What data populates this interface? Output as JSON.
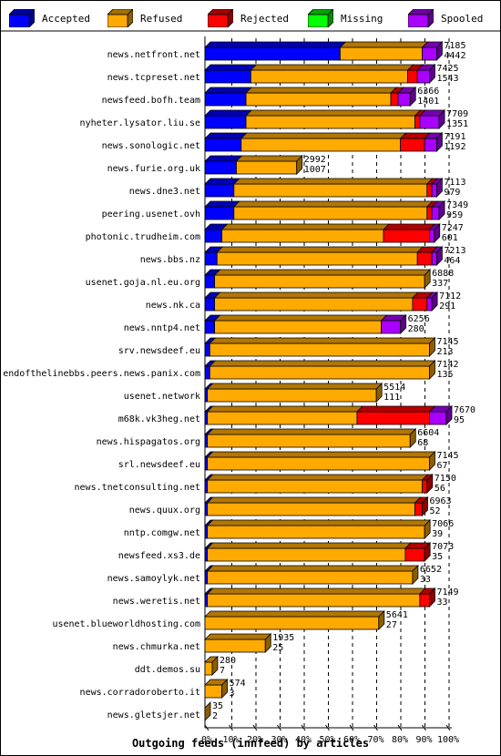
{
  "chart_data": {
    "type": "bar",
    "orientation": "horizontal",
    "stacked": true,
    "title": "Outgoing feeds (innfeed) by articles",
    "series": [
      {
        "name": "Accepted",
        "color": "#0000ff"
      },
      {
        "name": "Refused",
        "color": "#ffaa00"
      },
      {
        "name": "Rejected",
        "color": "#ff0000"
      },
      {
        "name": "Missing",
        "color": "#00ff00"
      },
      {
        "name": "Spooled",
        "color": "#aa00ff"
      }
    ],
    "x_ticks": [
      "0%",
      "10%",
      "20%",
      "30%",
      "40%",
      "50%",
      "60%",
      "70%",
      "80%",
      "90%",
      "100%"
    ],
    "xlim": [
      0,
      100
    ],
    "grid": true,
    "legend_position": "top",
    "rows": [
      {
        "name": "news.netfront.net",
        "total": "7185",
        "accepted": "4442",
        "pct": [
          56,
          34,
          0,
          0,
          6
        ]
      },
      {
        "name": "news.tcpreset.net",
        "total": "7425",
        "accepted": "1543",
        "pct": [
          19,
          65,
          4,
          0,
          5
        ]
      },
      {
        "name": "newsfeed.bofh.team",
        "total": "6366",
        "accepted": "1401",
        "pct": [
          17,
          60,
          3,
          0,
          5
        ]
      },
      {
        "name": "nyheter.lysator.liu.se",
        "total": "7709",
        "accepted": "1351",
        "pct": [
          17,
          70,
          2,
          0,
          8
        ]
      },
      {
        "name": "news.sonologic.net",
        "total": "7191",
        "accepted": "1192",
        "pct": [
          15,
          66,
          10,
          0,
          5
        ]
      },
      {
        "name": "news.furie.org.uk",
        "total": "2992",
        "accepted": "1007",
        "pct": [
          13,
          25,
          0,
          0,
          0
        ]
      },
      {
        "name": "news.dne3.net",
        "total": "7113",
        "accepted": "979",
        "pct": [
          12,
          80,
          2,
          0,
          2
        ]
      },
      {
        "name": "peering.usenet.ovh",
        "total": "7349",
        "accepted": "959",
        "pct": [
          12,
          80,
          2,
          0,
          3
        ]
      },
      {
        "name": "photonic.trudheim.com",
        "total": "7247",
        "accepted": "601",
        "pct": [
          7,
          67,
          19,
          0,
          2
        ]
      },
      {
        "name": "news.bbs.nz",
        "total": "7213",
        "accepted": "464",
        "pct": [
          5,
          83,
          6,
          0,
          2
        ]
      },
      {
        "name": "usenet.goja.nl.eu.org",
        "total": "6888",
        "accepted": "337",
        "pct": [
          4,
          87,
          0,
          0,
          0
        ]
      },
      {
        "name": "news.nk.ca",
        "total": "7112",
        "accepted": "291",
        "pct": [
          4,
          82,
          6,
          0,
          2
        ]
      },
      {
        "name": "news.nntp4.net",
        "total": "6256",
        "accepted": "280",
        "pct": [
          4,
          69,
          0,
          0,
          8
        ]
      },
      {
        "name": "srv.newsdeef.eu",
        "total": "7145",
        "accepted": "213",
        "pct": [
          2,
          91,
          0,
          0,
          0
        ]
      },
      {
        "name": "endofthelinebbs.peers.news.panix.com",
        "total": "7142",
        "accepted": "135",
        "pct": [
          2,
          91,
          0,
          0,
          0
        ]
      },
      {
        "name": "usenet.network",
        "total": "5514",
        "accepted": "111",
        "pct": [
          1,
          70,
          0,
          0,
          0
        ]
      },
      {
        "name": "m68k.vk3heg.net",
        "total": "7670",
        "accepted": "95",
        "pct": [
          1,
          62,
          30,
          0,
          7
        ]
      },
      {
        "name": "news.hispagatos.org",
        "total": "6604",
        "accepted": "68",
        "pct": [
          1,
          84,
          0,
          0,
          0
        ]
      },
      {
        "name": "srl.newsdeef.eu",
        "total": "7145",
        "accepted": "67",
        "pct": [
          1,
          92,
          0,
          0,
          0
        ]
      },
      {
        "name": "news.tnetconsulting.net",
        "total": "7150",
        "accepted": "56",
        "pct": [
          1,
          89,
          2,
          0,
          0
        ]
      },
      {
        "name": "news.quux.org",
        "total": "6963",
        "accepted": "52",
        "pct": [
          1,
          86,
          3,
          0,
          0
        ]
      },
      {
        "name": "nntp.comgw.net",
        "total": "7066",
        "accepted": "39",
        "pct": [
          1,
          90,
          0,
          0,
          0
        ]
      },
      {
        "name": "newsfeed.xs3.de",
        "total": "7073",
        "accepted": "35",
        "pct": [
          1,
          82,
          8,
          0,
          0
        ]
      },
      {
        "name": "news.samoylyk.net",
        "total": "6652",
        "accepted": "33",
        "pct": [
          1,
          85,
          0,
          0,
          0
        ]
      },
      {
        "name": "news.weretis.net",
        "total": "7149",
        "accepted": "33",
        "pct": [
          1,
          88,
          4,
          0,
          0
        ]
      },
      {
        "name": "usenet.blueworldhosting.com",
        "total": "5641",
        "accepted": "27",
        "pct": [
          0,
          72,
          0,
          0,
          0
        ]
      },
      {
        "name": "news.chmurka.net",
        "total": "1935",
        "accepted": "25",
        "pct": [
          0,
          25,
          0,
          0,
          0
        ]
      },
      {
        "name": "ddt.demos.su",
        "total": "280",
        "accepted": "7",
        "pct": [
          0,
          3,
          0,
          0,
          0
        ]
      },
      {
        "name": "news.corradoroberto.it",
        "total": "574",
        "accepted": "3",
        "pct": [
          0,
          7,
          0,
          0,
          0
        ]
      },
      {
        "name": "news.gletsjer.net",
        "total": "35",
        "accepted": "2",
        "pct": [
          0,
          0,
          0,
          0,
          0
        ]
      }
    ]
  }
}
